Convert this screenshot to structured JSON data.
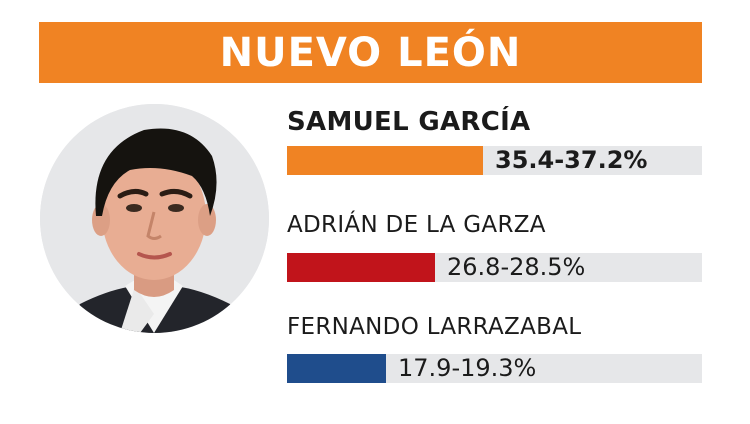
{
  "header": {
    "title": "NUEVO LEÓN",
    "color": "#f08323"
  },
  "photo": {
    "subject": "candidate-portrait"
  },
  "chart_data": {
    "type": "bar",
    "orientation": "horizontal",
    "xlim": [
      0,
      75
    ],
    "categories": [
      "SAMUEL GARCÍA",
      "ADRIÁN DE LA GARZA",
      "FERNANDO LARRAZABAL"
    ],
    "series": [
      {
        "low": [
          35.4,
          26.8,
          17.9
        ],
        "high": [
          37.2,
          28.5,
          19.3
        ]
      }
    ],
    "labels": [
      "35.4-37.2%",
      "26.8-28.5%",
      "17.9-19.3%"
    ],
    "colors": [
      "#f08323",
      "#c1141b",
      "#1f4d8c"
    ],
    "leader_index": 0
  }
}
